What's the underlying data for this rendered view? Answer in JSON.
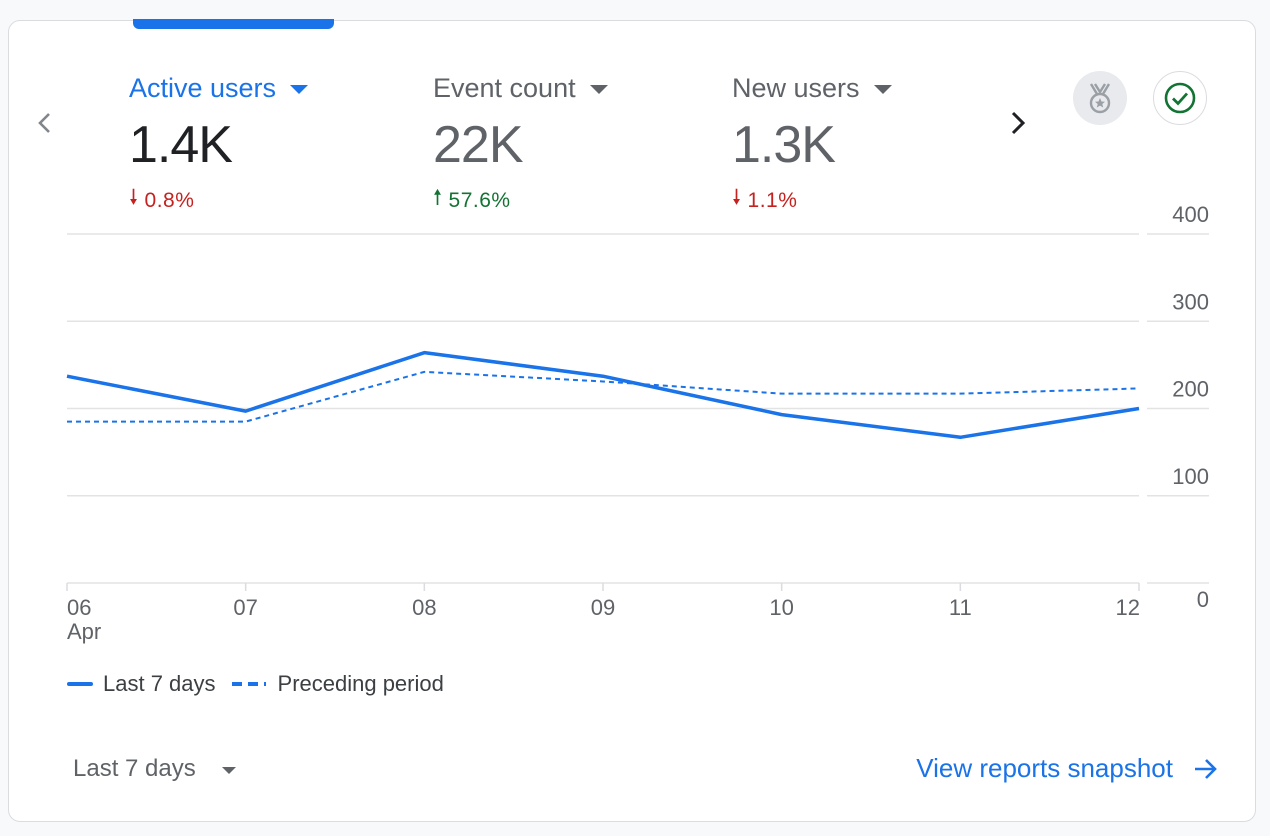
{
  "metrics": [
    {
      "label": "Active users",
      "value": "1.4K",
      "change": "0.8%",
      "direction": "down",
      "active": true
    },
    {
      "label": "Event count",
      "value": "22K",
      "change": "57.6%",
      "direction": "up",
      "active": false
    },
    {
      "label": "New users",
      "value": "1.3K",
      "change": "1.1%",
      "direction": "down",
      "active": false
    }
  ],
  "icons": {
    "prev": "chevron-left-icon",
    "next": "chevron-right-icon",
    "badge": "medal-icon",
    "status": "check-circle-icon",
    "link_arrow": "arrow-right-icon"
  },
  "colors": {
    "accent": "#1a73e8",
    "up": "#137333",
    "down": "#c5221f"
  },
  "chart_data": {
    "type": "line",
    "x": [
      "06",
      "07",
      "08",
      "09",
      "10",
      "11",
      "12"
    ],
    "x_sublabel_first": "Apr",
    "series": [
      {
        "name": "Last 7 days",
        "style": "solid",
        "values": [
          237,
          197,
          264,
          237,
          193,
          167,
          200
        ]
      },
      {
        "name": "Preceding period",
        "style": "dashed",
        "values": [
          185,
          185,
          242,
          231,
          217,
          217,
          223
        ]
      }
    ],
    "yticks": [
      "0",
      "100",
      "200",
      "300",
      "400"
    ],
    "ylim": [
      0,
      400
    ],
    "grid": true,
    "legend_position": "bottom-left"
  },
  "footer": {
    "date_range": "Last 7 days",
    "link_label": "View reports snapshot"
  }
}
